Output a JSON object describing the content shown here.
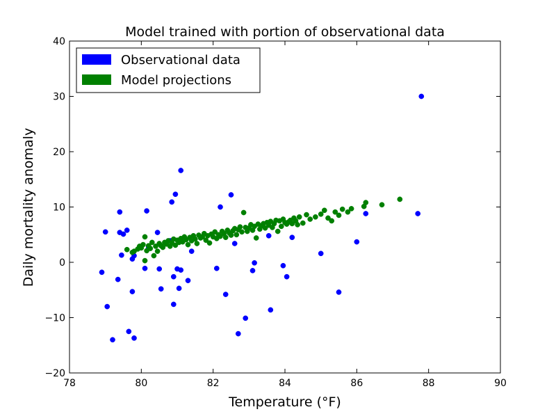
{
  "chart_data": {
    "type": "scatter",
    "title": "Model trained with portion of observational data",
    "xlabel": "Temperature (°F)",
    "ylabel": "Daily mortality anomaly",
    "xlim": [
      78,
      90
    ],
    "ylim": [
      -20,
      40
    ],
    "xticks": [
      78,
      80,
      82,
      84,
      86,
      88,
      90
    ],
    "yticks": [
      -20,
      -10,
      0,
      10,
      20,
      30,
      40
    ],
    "xtick_labels": [
      "78",
      "80",
      "82",
      "84",
      "86",
      "88",
      "90"
    ],
    "ytick_labels": [
      "−20",
      "−10",
      "0",
      "10",
      "20",
      "30",
      "40"
    ],
    "grid": false,
    "legend_position": "top-left",
    "series": [
      {
        "name": "Observational data",
        "color": "#0000ff",
        "points": [
          [
            78.9,
            -1.8
          ],
          [
            79.0,
            5.5
          ],
          [
            79.05,
            -8.0
          ],
          [
            79.2,
            -14.0
          ],
          [
            79.35,
            -3.1
          ],
          [
            79.4,
            9.1
          ],
          [
            79.4,
            5.4
          ],
          [
            79.45,
            1.3
          ],
          [
            79.5,
            5.1
          ],
          [
            79.6,
            5.8
          ],
          [
            79.65,
            -12.5
          ],
          [
            79.75,
            -5.3
          ],
          [
            79.75,
            0.6
          ],
          [
            79.8,
            1.2
          ],
          [
            79.8,
            -13.7
          ],
          [
            80.1,
            -1.1
          ],
          [
            80.15,
            9.3
          ],
          [
            80.2,
            2.8
          ],
          [
            80.45,
            5.4
          ],
          [
            80.5,
            -1.2
          ],
          [
            80.55,
            -4.8
          ],
          [
            80.8,
            3.9
          ],
          [
            80.85,
            10.9
          ],
          [
            80.9,
            -7.6
          ],
          [
            80.9,
            -2.6
          ],
          [
            80.95,
            12.3
          ],
          [
            81.0,
            -1.2
          ],
          [
            81.05,
            -4.7
          ],
          [
            81.1,
            16.6
          ],
          [
            81.1,
            -1.4
          ],
          [
            81.3,
            -3.3
          ],
          [
            81.4,
            2.0
          ],
          [
            82.1,
            -1.1
          ],
          [
            82.2,
            10.0
          ],
          [
            82.35,
            -5.8
          ],
          [
            82.5,
            12.2
          ],
          [
            82.6,
            3.4
          ],
          [
            82.7,
            -12.9
          ],
          [
            82.9,
            -10.1
          ],
          [
            83.1,
            -1.5
          ],
          [
            83.15,
            -0.1
          ],
          [
            83.55,
            4.8
          ],
          [
            83.6,
            -8.6
          ],
          [
            83.95,
            -0.6
          ],
          [
            84.05,
            -2.6
          ],
          [
            84.2,
            4.5
          ],
          [
            85.0,
            1.6
          ],
          [
            85.5,
            -5.4
          ],
          [
            86.0,
            3.7
          ],
          [
            86.25,
            8.8
          ],
          [
            87.7,
            8.8
          ],
          [
            87.8,
            30.0
          ]
        ]
      },
      {
        "name": "Model projections",
        "color": "#008000",
        "points": [
          [
            79.6,
            2.3
          ],
          [
            79.75,
            1.8
          ],
          [
            79.8,
            2.0
          ],
          [
            79.9,
            2.4
          ],
          [
            79.95,
            2.9
          ],
          [
            80.0,
            2.6
          ],
          [
            80.05,
            3.2
          ],
          [
            80.1,
            4.6
          ],
          [
            80.1,
            0.3
          ],
          [
            80.15,
            2.1
          ],
          [
            80.2,
            3.0
          ],
          [
            80.25,
            2.5
          ],
          [
            80.3,
            3.6
          ],
          [
            80.35,
            1.2
          ],
          [
            80.4,
            2.9
          ],
          [
            80.45,
            2.0
          ],
          [
            80.5,
            3.4
          ],
          [
            80.55,
            3.0
          ],
          [
            80.6,
            2.7
          ],
          [
            80.65,
            3.6
          ],
          [
            80.7,
            3.3
          ],
          [
            80.75,
            3.9
          ],
          [
            80.8,
            2.9
          ],
          [
            80.85,
            3.5
          ],
          [
            80.9,
            4.2
          ],
          [
            80.95,
            3.1
          ],
          [
            81.0,
            4.0
          ],
          [
            81.05,
            3.6
          ],
          [
            81.1,
            4.3
          ],
          [
            81.15,
            3.7
          ],
          [
            81.2,
            4.6
          ],
          [
            81.25,
            4.1
          ],
          [
            81.3,
            3.2
          ],
          [
            81.35,
            4.5
          ],
          [
            81.4,
            3.9
          ],
          [
            81.45,
            4.8
          ],
          [
            81.5,
            4.2
          ],
          [
            81.55,
            3.4
          ],
          [
            81.6,
            4.9
          ],
          [
            81.65,
            4.4
          ],
          [
            81.7,
            4.6
          ],
          [
            81.75,
            5.2
          ],
          [
            81.8,
            4.0
          ],
          [
            81.85,
            4.8
          ],
          [
            81.9,
            3.5
          ],
          [
            81.95,
            5.1
          ],
          [
            82.0,
            4.6
          ],
          [
            82.05,
            5.5
          ],
          [
            82.1,
            4.3
          ],
          [
            82.15,
            5.0
          ],
          [
            82.2,
            4.7
          ],
          [
            82.25,
            5.6
          ],
          [
            82.3,
            5.2
          ],
          [
            82.35,
            4.5
          ],
          [
            82.4,
            5.8
          ],
          [
            82.45,
            5.3
          ],
          [
            82.5,
            4.9
          ],
          [
            82.55,
            5.7
          ],
          [
            82.6,
            6.1
          ],
          [
            82.65,
            5.0
          ],
          [
            82.7,
            5.9
          ],
          [
            82.75,
            6.4
          ],
          [
            82.8,
            5.5
          ],
          [
            82.85,
            9.0
          ],
          [
            82.9,
            6.3
          ],
          [
            82.95,
            5.6
          ],
          [
            83.0,
            6.2
          ],
          [
            83.05,
            6.8
          ],
          [
            83.1,
            5.8
          ],
          [
            83.15,
            6.5
          ],
          [
            83.2,
            4.4
          ],
          [
            83.25,
            6.9
          ],
          [
            83.3,
            6.0
          ],
          [
            83.35,
            6.6
          ],
          [
            83.4,
            7.0
          ],
          [
            83.45,
            6.2
          ],
          [
            83.5,
            7.2
          ],
          [
            83.55,
            6.7
          ],
          [
            83.6,
            7.4
          ],
          [
            83.65,
            6.3
          ],
          [
            83.7,
            7.0
          ],
          [
            83.75,
            7.6
          ],
          [
            83.8,
            5.6
          ],
          [
            83.85,
            7.5
          ],
          [
            83.9,
            6.5
          ],
          [
            83.95,
            7.8
          ],
          [
            84.0,
            7.2
          ],
          [
            84.05,
            6.9
          ],
          [
            84.1,
            7.3
          ],
          [
            84.15,
            7.6
          ],
          [
            84.2,
            7.0
          ],
          [
            84.25,
            8.0
          ],
          [
            84.3,
            7.5
          ],
          [
            84.35,
            6.8
          ],
          [
            84.4,
            8.2
          ],
          [
            84.5,
            7.1
          ],
          [
            84.6,
            8.6
          ],
          [
            84.7,
            7.8
          ],
          [
            84.85,
            8.2
          ],
          [
            85.0,
            8.7
          ],
          [
            85.1,
            9.4
          ],
          [
            85.2,
            8.0
          ],
          [
            85.3,
            7.5
          ],
          [
            85.4,
            9.1
          ],
          [
            85.5,
            8.5
          ],
          [
            85.6,
            9.6
          ],
          [
            85.75,
            9.1
          ],
          [
            85.85,
            9.7
          ],
          [
            86.2,
            10.1
          ],
          [
            86.25,
            10.8
          ],
          [
            86.7,
            10.4
          ],
          [
            87.2,
            11.4
          ]
        ]
      }
    ]
  }
}
